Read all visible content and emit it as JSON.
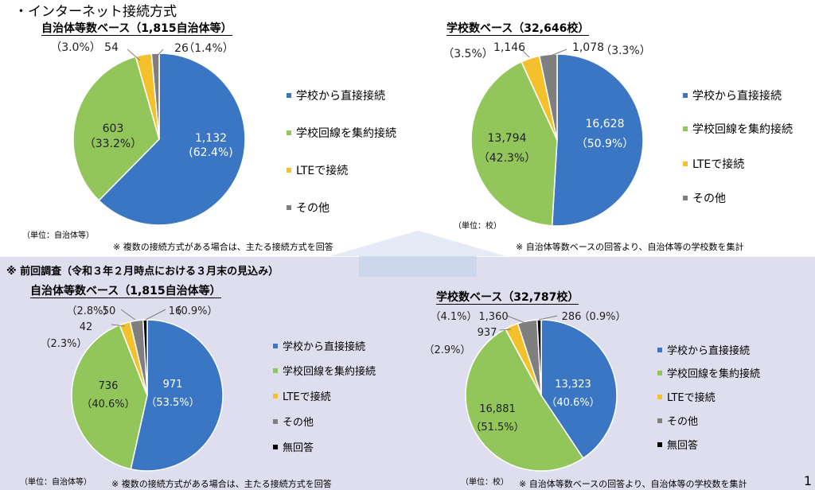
{
  "title": "・インターネット接続方式",
  "prev_title": "※ 前回調査（令和３年２月時点における３月末の見込み）",
  "page_number": "1",
  "colors": {
    "direct": "#3a76c4",
    "aggregated": "#93c65a",
    "lte": "#f4c12d",
    "other": "#7f7f7f",
    "none": "#000000",
    "panel": "#dedeef"
  },
  "legend_labels": {
    "direct": "学校から直接接続",
    "aggregated": "学校回線を集約接続",
    "lte": "LTEで接続",
    "other": "その他",
    "none": "無回答"
  },
  "chart_data": [
    {
      "type": "pie",
      "title": "自治体等数ベース（1,815自治体等）",
      "unit": "（単位：自治体等）",
      "note": "※ 複数の接続方式がある場合は、主たる接続方式を回答",
      "slices": [
        {
          "key": "direct",
          "value": 1132,
          "percent": 62.4,
          "value_label": "1,132",
          "percent_label": "(62.4%)"
        },
        {
          "key": "aggregated",
          "value": 603,
          "percent": 33.2,
          "value_label": "603",
          "percent_label": "（33.2%）"
        },
        {
          "key": "lte",
          "value": 54,
          "percent": 3.0,
          "value_label": "54",
          "percent_label": "（3.0%）"
        },
        {
          "key": "other",
          "value": 26,
          "percent": 1.4,
          "value_label": "26",
          "percent_label": "（1.4%）"
        }
      ]
    },
    {
      "type": "pie",
      "title": "学校数ベース（32,646校）",
      "unit": "（単位：校）",
      "note": "※ 自治体等数ベースの回答より、自治体等の学校数を集計",
      "slices": [
        {
          "key": "direct",
          "value": 16628,
          "percent": 50.9,
          "value_label": "16,628",
          "percent_label": "（50.9%）"
        },
        {
          "key": "aggregated",
          "value": 13794,
          "percent": 42.3,
          "value_label": "13,794",
          "percent_label": "（42.3%）"
        },
        {
          "key": "lte",
          "value": 1146,
          "percent": 3.5,
          "value_label": "1,146",
          "percent_label": "（3.5%）"
        },
        {
          "key": "other",
          "value": 1078,
          "percent": 3.3,
          "value_label": "1,078",
          "percent_label": "（3.3%）"
        }
      ]
    },
    {
      "type": "pie",
      "title": "自治体等数ベース（1,815自治体等）",
      "unit": "（単位：自治体等）",
      "note": "※ 複数の接続方式がある場合は、主たる接続方式を回答",
      "slices": [
        {
          "key": "direct",
          "value": 971,
          "percent": 53.5,
          "value_label": "971",
          "percent_label": "（53.5%）"
        },
        {
          "key": "aggregated",
          "value": 736,
          "percent": 40.6,
          "value_label": "736",
          "percent_label": "（40.6%）"
        },
        {
          "key": "lte",
          "value": 42,
          "percent": 2.3,
          "value_label": "42",
          "percent_label": "（2.3%）"
        },
        {
          "key": "other",
          "value": 50,
          "percent": 2.8,
          "value_label": "50",
          "percent_label": "（2.8%）"
        },
        {
          "key": "none",
          "value": 16,
          "percent": 0.9,
          "value_label": "16",
          "percent_label": "（0.9%）"
        }
      ]
    },
    {
      "type": "pie",
      "title": "学校数ベース（32,787校）",
      "unit": "（単位：校）",
      "note": "※ 自治体等数ベースの回答より、自治体等の学校数を集計",
      "slices": [
        {
          "key": "direct",
          "value": 13323,
          "percent": 40.6,
          "value_label": "13,323",
          "percent_label": "（40.6%）"
        },
        {
          "key": "aggregated",
          "value": 16881,
          "percent": 51.5,
          "value_label": "16,881",
          "percent_label": "（51.5%）"
        },
        {
          "key": "lte",
          "value": 937,
          "percent": 2.9,
          "value_label": "937",
          "percent_label": "（2.9%）"
        },
        {
          "key": "other",
          "value": 1360,
          "percent": 4.1,
          "value_label": "1,360",
          "percent_label": "（4.1%）"
        },
        {
          "key": "none",
          "value": 286,
          "percent": 0.9,
          "value_label": "286",
          "percent_label": "（0.9%）"
        }
      ]
    }
  ]
}
